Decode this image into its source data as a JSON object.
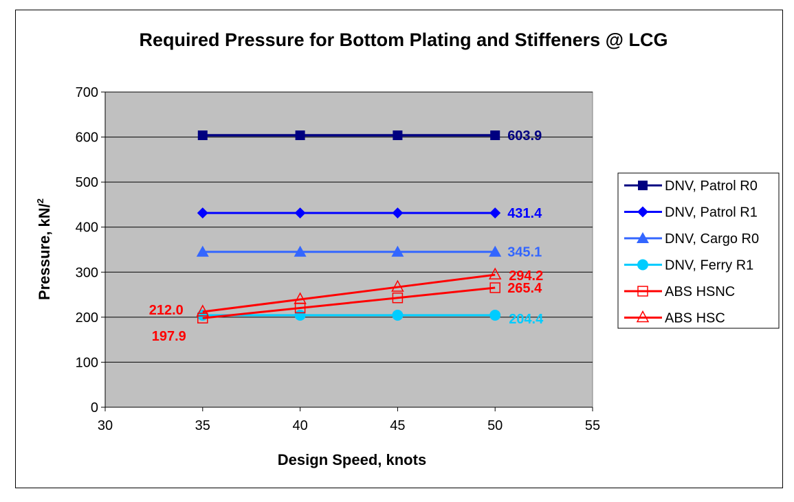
{
  "chart_data": {
    "type": "line",
    "title": "Required Pressure for Bottom Plating and Stiffeners @ LCG",
    "xlabel": "Design Speed, knots",
    "ylabel": "Pressure, kN/",
    "ylabel_sup": "2",
    "xlim": [
      30,
      55
    ],
    "ylim": [
      0,
      700
    ],
    "xticks": [
      "30",
      "35",
      "40",
      "45",
      "50",
      "55"
    ],
    "yticks": [
      "0",
      "100",
      "200",
      "300",
      "400",
      "500",
      "600",
      "700"
    ],
    "grid": "horizontal",
    "plot_background": "#c0c0c0",
    "legend_position": "right",
    "x": [
      35,
      40,
      45,
      50
    ],
    "series": [
      {
        "name": "DNV, Patrol R0",
        "values": [
          603.9,
          603.9,
          603.9,
          603.9
        ],
        "color": "#000080",
        "marker": "square-filled"
      },
      {
        "name": "DNV, Patrol R1",
        "values": [
          431.4,
          431.4,
          431.4,
          431.4
        ],
        "color": "#0000ff",
        "marker": "diamond-filled"
      },
      {
        "name": "DNV, Cargo R0",
        "values": [
          345.1,
          345.1,
          345.1,
          345.1
        ],
        "color": "#3366ff",
        "marker": "triangle-filled"
      },
      {
        "name": "DNV, Ferry R1",
        "values": [
          204.4,
          204.4,
          204.4,
          204.4
        ],
        "color": "#00ccff",
        "marker": "circle-filled"
      },
      {
        "name": "ABS HSNC",
        "values": [
          197.9,
          220.4,
          242.9,
          265.4
        ],
        "color": "#ff0000",
        "marker": "square-open"
      },
      {
        "name": "ABS HSC",
        "values": [
          212.0,
          239.4,
          266.8,
          294.2
        ],
        "color": "#ff0000",
        "marker": "triangle-open"
      }
    ],
    "data_labels": [
      {
        "text": "603.9",
        "color": "#000080"
      },
      {
        "text": "431.4",
        "color": "#0000ff"
      },
      {
        "text": "345.1",
        "color": "#3366ff"
      },
      {
        "text": "294.2",
        "color": "#ff0000"
      },
      {
        "text": "265.4",
        "color": "#ff0000"
      },
      {
        "text": "204.4",
        "color": "#00ccff"
      },
      {
        "text": "212.0",
        "color": "#ff0000"
      },
      {
        "text": "197.9",
        "color": "#ff0000"
      }
    ]
  }
}
